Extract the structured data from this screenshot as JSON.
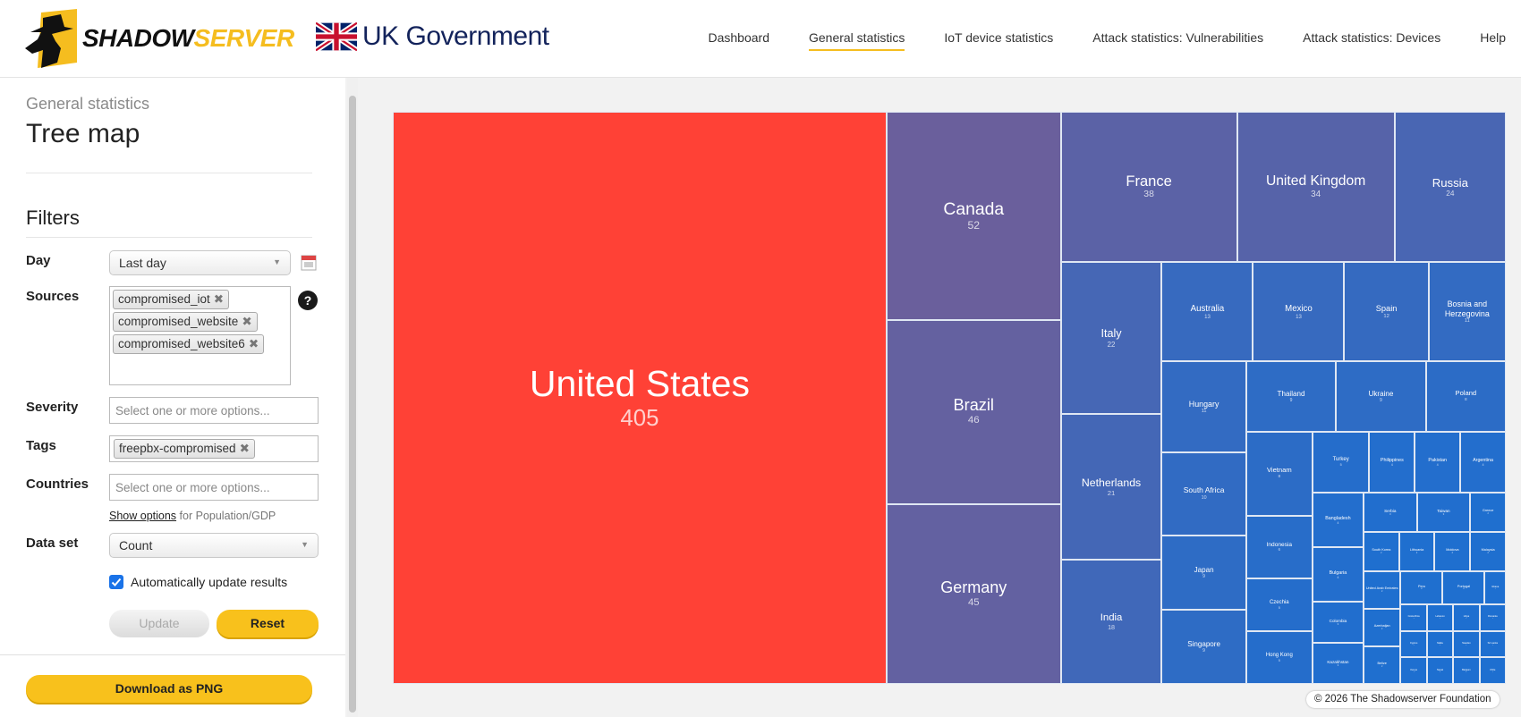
{
  "header": {
    "logo_text_a": "SHADOW",
    "logo_text_b": "SERVER",
    "partner": "UK Government",
    "nav": [
      {
        "label": "Dashboard",
        "active": false
      },
      {
        "label": "General statistics",
        "active": true
      },
      {
        "label": "IoT device statistics",
        "active": false
      },
      {
        "label": "Attack statistics: Vulnerabilities",
        "active": false
      },
      {
        "label": "Attack statistics: Devices",
        "active": false
      },
      {
        "label": "Help",
        "active": false
      }
    ]
  },
  "sidebar": {
    "section": "General statistics",
    "title": "Tree map",
    "filters_heading": "Filters",
    "day": {
      "label": "Day",
      "value": "Last day"
    },
    "sources": {
      "label": "Sources",
      "tags": [
        "compromised_iot",
        "compromised_website",
        "compromised_website6"
      ]
    },
    "severity": {
      "label": "Severity",
      "placeholder": "Select one or more options..."
    },
    "tags": {
      "label": "Tags",
      "tags": [
        "freepbx-compromised"
      ]
    },
    "countries": {
      "label": "Countries",
      "placeholder": "Select one or more options..."
    },
    "show_options_link": "Show options",
    "show_options_suffix": "for Population/GDP",
    "dataset": {
      "label": "Data set",
      "value": "Count"
    },
    "auto_update": {
      "label": "Automatically update results",
      "checked": true
    },
    "update_label": "Update",
    "reset_label": "Reset",
    "download_label": "Download as PNG"
  },
  "colors": {
    "accent": "#f5bd1f",
    "low": "#1e6fd0",
    "high": "#ff4136"
  },
  "chart_data": {
    "type": "treemap",
    "data": [
      [
        "United States",
        405
      ],
      [
        "Canada",
        52
      ],
      [
        "Brazil",
        46
      ],
      [
        "Germany",
        45
      ],
      [
        "France",
        38
      ],
      [
        "United Kingdom",
        34
      ],
      [
        "Russia",
        24
      ],
      [
        "Italy",
        22
      ],
      [
        "Netherlands",
        21
      ],
      [
        "India",
        18
      ],
      [
        "Australia",
        13
      ],
      [
        "Mexico",
        13
      ],
      [
        "Spain",
        12
      ],
      [
        "Bosnia and Herzegovina",
        11
      ],
      [
        "Hungary",
        11
      ],
      [
        "South Africa",
        10
      ],
      [
        "Japan",
        9
      ],
      [
        "Singapore",
        9
      ],
      [
        "Thailand",
        9
      ],
      [
        "Ukraine",
        9
      ],
      [
        "Poland",
        8
      ],
      [
        "Vietnam",
        8
      ],
      [
        "Indonesia",
        6
      ],
      [
        "Czechia",
        5
      ],
      [
        "Hong Kong",
        5
      ],
      [
        "Turkey",
        5
      ],
      [
        "Philippines",
        4
      ],
      [
        "Pakistan",
        4
      ],
      [
        "Argentina",
        4
      ],
      [
        "Bangladesh",
        4
      ],
      [
        "Bulgaria",
        4
      ],
      [
        "Colombia",
        3
      ],
      [
        "Kazakhstan",
        3
      ],
      [
        "Serbia",
        3
      ],
      [
        "Taiwan",
        3
      ],
      [
        "Greece",
        2
      ],
      [
        "South Korea",
        2
      ],
      [
        "Lithuania",
        2
      ],
      [
        "Moldova",
        2
      ],
      [
        "Malaysia",
        2
      ],
      [
        "United Arab Emirates",
        2
      ],
      [
        "Azerbaijan",
        2
      ],
      [
        "Belize",
        2
      ],
      [
        "Peru",
        2
      ],
      [
        "Portugal",
        2
      ],
      [
        "Ghana",
        1
      ],
      [
        "Costa Rica",
        1
      ],
      [
        "Cyprus",
        1
      ],
      [
        "Kenya",
        1
      ],
      [
        "Lebanon",
        1
      ],
      [
        "Libya",
        1
      ],
      [
        "Romania",
        1
      ],
      [
        "Malta",
        1
      ],
      [
        "Nepal",
        1
      ],
      [
        "Sweden",
        1
      ],
      [
        "Sri Lanka",
        1
      ],
      [
        "Belgium",
        1
      ],
      [
        "Chile",
        1
      ]
    ]
  },
  "copyright": "© 2026 The Shadowserver Foundation"
}
